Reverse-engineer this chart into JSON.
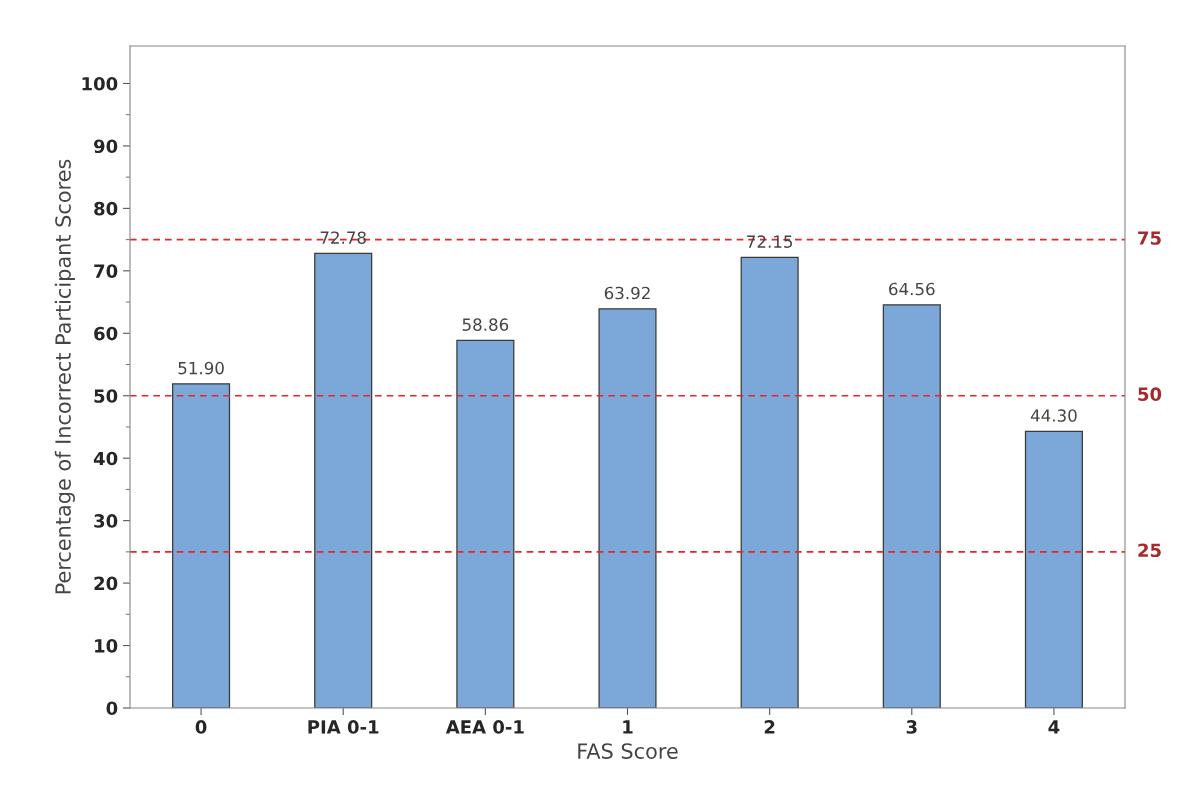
{
  "chart_data": {
    "type": "bar",
    "xlabel": "FAS Score",
    "ylabel": "Percentage of Incorrect Participant Scores",
    "categories": [
      "0",
      "PIA 0-1",
      "AEA 0-1",
      "1",
      "2",
      "3",
      "4"
    ],
    "values": [
      51.9,
      72.78,
      58.86,
      63.92,
      72.15,
      64.56,
      44.3
    ],
    "value_labels": [
      "51.90",
      "72.78",
      "58.86",
      "63.92",
      "72.15",
      "64.56",
      "44.30"
    ],
    "color": "#7ba7d9",
    "ylim": [
      0,
      106
    ],
    "yticks": [
      0,
      10,
      20,
      30,
      40,
      50,
      60,
      70,
      80,
      90,
      100
    ],
    "ref_lines": [
      {
        "axis": "y",
        "value": 25,
        "label": "25",
        "color": "#e8262a",
        "line_style": "dashed"
      },
      {
        "axis": "y",
        "value": 50,
        "label": "50",
        "color": "#e8262a",
        "line_style": "dashed"
      },
      {
        "axis": "y",
        "value": 75,
        "label": "75",
        "color": "#e8262a",
        "line_style": "dashed"
      }
    ],
    "grid": false,
    "legend": false
  }
}
